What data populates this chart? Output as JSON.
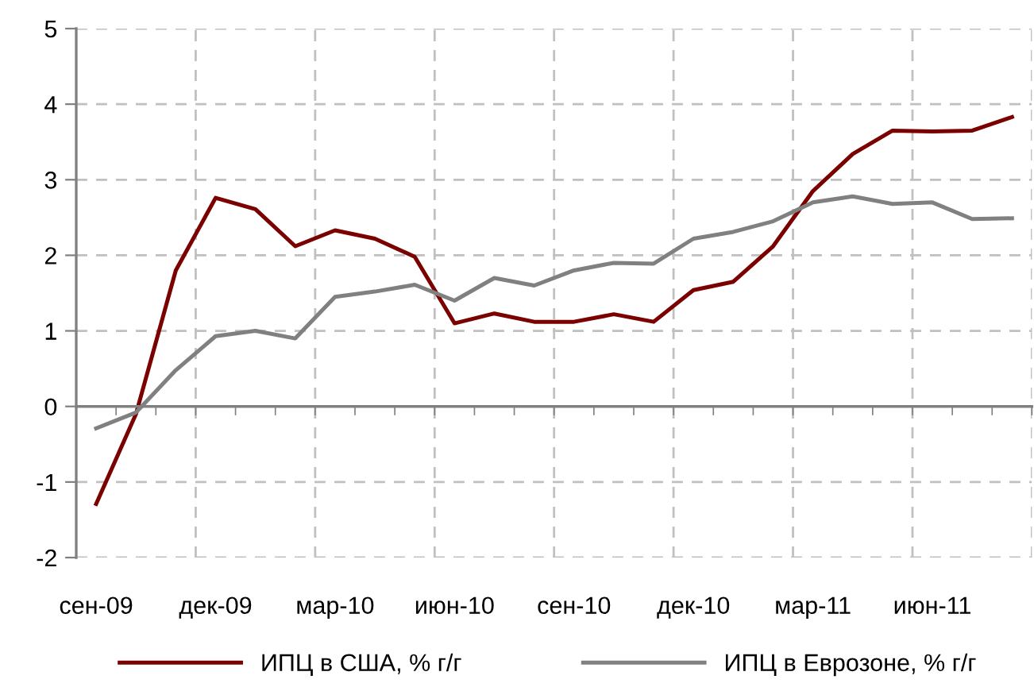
{
  "chart_data": {
    "type": "line",
    "categories": [
      "сен-09",
      null,
      null,
      "дек-09",
      null,
      null,
      "мар-10",
      null,
      null,
      "июн-10",
      null,
      null,
      "сен-10",
      null,
      null,
      "дек-10",
      null,
      null,
      "мар-11",
      null,
      null,
      "июн-11",
      null,
      null
    ],
    "series": [
      {
        "name": "ИПЦ в США, % г/г",
        "color": "#7b0000",
        "values": [
          -1.29,
          -0.1,
          1.8,
          2.76,
          2.61,
          2.12,
          2.33,
          2.22,
          1.98,
          1.1,
          1.23,
          1.12,
          1.12,
          1.22,
          1.12,
          1.54,
          1.65,
          2.12,
          2.85,
          3.34,
          3.65,
          3.64,
          3.65,
          3.83
        ]
      },
      {
        "name": "ИПЦ в Еврозоне, % г/г",
        "color": "#808080",
        "values": [
          -0.29,
          -0.08,
          0.48,
          0.93,
          1.0,
          0.9,
          1.45,
          1.52,
          1.61,
          1.4,
          1.7,
          1.6,
          1.8,
          1.9,
          1.89,
          2.22,
          2.31,
          2.45,
          2.7,
          2.78,
          2.68,
          2.7,
          2.48,
          2.49
        ]
      }
    ],
    "ylim": [
      -2,
      5
    ],
    "yticks": [
      -2,
      -1,
      0,
      1,
      2,
      3,
      4,
      5
    ],
    "grid": true,
    "legend": "bottom",
    "line_style": "solid",
    "marker": "none"
  }
}
